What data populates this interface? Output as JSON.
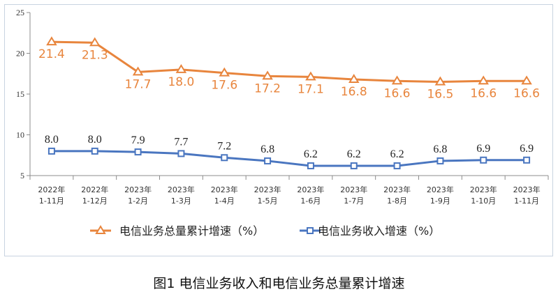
{
  "chart_data": {
    "type": "line",
    "caption": "图1 电信业务收入和电信业务总量累计增速",
    "categories": [
      [
        "2022年",
        "1-11月"
      ],
      [
        "2022年",
        "1-12月"
      ],
      [
        "2023年",
        "1-2月"
      ],
      [
        "2023年",
        "1-3月"
      ],
      [
        "2023年",
        "1-4月"
      ],
      [
        "2023年",
        "1-5月"
      ],
      [
        "2023年",
        "1-6月"
      ],
      [
        "2023年",
        "1-7月"
      ],
      [
        "2023年",
        "1-8月"
      ],
      [
        "2023年",
        "1-9月"
      ],
      [
        "2023年",
        "1-10月"
      ],
      [
        "2023年",
        "1-11月"
      ]
    ],
    "series": [
      {
        "name": "电信业务总量累计增速（%）",
        "color": "#e8853d",
        "marker": "triangle",
        "values": [
          21.4,
          21.3,
          17.7,
          18.0,
          17.6,
          17.2,
          17.1,
          16.8,
          16.6,
          16.5,
          16.6,
          16.6
        ],
        "labels": [
          "21.4",
          "21.3",
          "17.7",
          "18.0",
          "17.6",
          "17.2",
          "17.1",
          "16.8",
          "16.6",
          "16.5",
          "16.6",
          "16.6"
        ]
      },
      {
        "name": "电信业务收入增速（%）",
        "color": "#4a76c0",
        "marker": "square",
        "values": [
          8.0,
          8.0,
          7.9,
          7.7,
          7.2,
          6.8,
          6.2,
          6.2,
          6.2,
          6.8,
          6.9,
          6.9
        ],
        "labels": [
          "8.0",
          "8.0",
          "7.9",
          "7.7",
          "7.2",
          "6.8",
          "6.2",
          "6.2",
          "6.2",
          "6.8",
          "6.9",
          "6.9"
        ]
      }
    ],
    "ylim": [
      5,
      25
    ],
    "yticks": [
      "5",
      "10",
      "15",
      "20",
      "25"
    ],
    "grid": false,
    "legend": "bottom-center"
  }
}
